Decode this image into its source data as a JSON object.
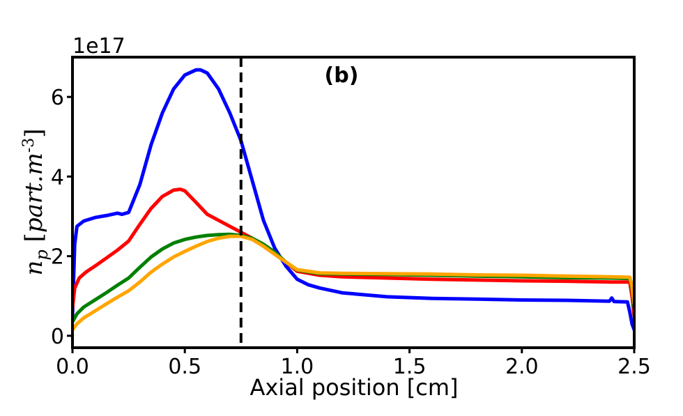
{
  "chart_data": {
    "type": "line",
    "panel_label": "(b)",
    "xlabel": "Axial position [cm]",
    "ylabel": {
      "main": "n",
      "sub": "p",
      "bracket_open": " [",
      "unit": "part.m",
      "exponent": "-3",
      "bracket_close": "]"
    },
    "y_offset_label": "1e17",
    "xlim": [
      0.0,
      2.5
    ],
    "ylim": [
      -0.3,
      7.0
    ],
    "x_ticks": [
      0.0,
      0.5,
      1.0,
      1.5,
      2.0,
      2.5
    ],
    "x_tick_labels": [
      "0.0",
      "0.5",
      "1.0",
      "1.5",
      "2.0",
      "2.5"
    ],
    "y_ticks": [
      0,
      2,
      4,
      6
    ],
    "y_tick_labels": [
      "0",
      "2",
      "4",
      "6"
    ],
    "grid": false,
    "vline": {
      "x": 0.75,
      "style": "dashed",
      "color": "#000000"
    },
    "series": [
      {
        "color": "#0000ff",
        "x": [
          0.0,
          0.01,
          0.02,
          0.05,
          0.1,
          0.15,
          0.2,
          0.22,
          0.25,
          0.3,
          0.35,
          0.4,
          0.45,
          0.5,
          0.55,
          0.57,
          0.6,
          0.65,
          0.7,
          0.75,
          0.8,
          0.85,
          0.9,
          0.95,
          1.0,
          1.05,
          1.1,
          1.2,
          1.4,
          1.6,
          1.8,
          2.0,
          2.2,
          2.39,
          2.4,
          2.41,
          2.47,
          2.48,
          2.49,
          2.5
        ],
        "values": [
          0.5,
          2.3,
          2.75,
          2.88,
          2.97,
          3.02,
          3.08,
          3.05,
          3.1,
          3.8,
          4.8,
          5.6,
          6.2,
          6.55,
          6.68,
          6.68,
          6.6,
          6.2,
          5.6,
          4.9,
          3.9,
          2.9,
          2.2,
          1.75,
          1.42,
          1.28,
          1.2,
          1.08,
          0.98,
          0.94,
          0.92,
          0.9,
          0.89,
          0.87,
          0.95,
          0.86,
          0.85,
          0.6,
          0.3,
          0.15
        ]
      },
      {
        "color": "#ff0000",
        "x": [
          0.0,
          0.01,
          0.03,
          0.06,
          0.1,
          0.15,
          0.2,
          0.25,
          0.3,
          0.35,
          0.4,
          0.45,
          0.48,
          0.5,
          0.55,
          0.6,
          0.65,
          0.7,
          0.75,
          0.8,
          0.85,
          0.9,
          0.95,
          1.0,
          1.1,
          1.2,
          1.4,
          1.6,
          1.8,
          2.0,
          2.2,
          2.4,
          2.48,
          2.49,
          2.5
        ],
        "values": [
          0.7,
          1.2,
          1.45,
          1.6,
          1.75,
          1.95,
          2.15,
          2.38,
          2.8,
          3.2,
          3.5,
          3.66,
          3.68,
          3.64,
          3.35,
          3.05,
          2.9,
          2.75,
          2.6,
          2.45,
          2.25,
          2.05,
          1.85,
          1.62,
          1.52,
          1.48,
          1.45,
          1.42,
          1.4,
          1.38,
          1.37,
          1.35,
          1.35,
          1.0,
          0.5
        ]
      },
      {
        "color": "#008000",
        "x": [
          0.0,
          0.02,
          0.05,
          0.1,
          0.15,
          0.2,
          0.25,
          0.3,
          0.35,
          0.4,
          0.45,
          0.5,
          0.55,
          0.6,
          0.65,
          0.7,
          0.75,
          0.8,
          0.85,
          0.9,
          0.95,
          1.0,
          1.1,
          1.2,
          1.4,
          1.6,
          1.8,
          2.0,
          2.2,
          2.4,
          2.48,
          2.49,
          2.5
        ],
        "values": [
          0.35,
          0.55,
          0.72,
          0.9,
          1.08,
          1.27,
          1.45,
          1.72,
          1.98,
          2.18,
          2.33,
          2.42,
          2.48,
          2.52,
          2.54,
          2.55,
          2.52,
          2.45,
          2.3,
          2.1,
          1.85,
          1.65,
          1.56,
          1.55,
          1.54,
          1.52,
          1.5,
          1.48,
          1.46,
          1.45,
          1.44,
          1.2,
          0.7
        ]
      },
      {
        "color": "#ffa500",
        "x": [
          0.0,
          0.02,
          0.05,
          0.1,
          0.15,
          0.2,
          0.25,
          0.3,
          0.35,
          0.4,
          0.45,
          0.5,
          0.55,
          0.6,
          0.65,
          0.7,
          0.75,
          0.8,
          0.85,
          0.9,
          0.95,
          1.0,
          1.1,
          1.2,
          1.4,
          1.6,
          1.8,
          2.0,
          2.2,
          2.4,
          2.48,
          2.49,
          2.5
        ],
        "values": [
          0.15,
          0.3,
          0.45,
          0.62,
          0.8,
          0.97,
          1.13,
          1.35,
          1.6,
          1.8,
          1.98,
          2.12,
          2.25,
          2.37,
          2.45,
          2.5,
          2.5,
          2.42,
          2.25,
          2.05,
          1.85,
          1.66,
          1.58,
          1.57,
          1.56,
          1.55,
          1.53,
          1.52,
          1.5,
          1.48,
          1.47,
          1.25,
          0.8
        ]
      }
    ]
  }
}
